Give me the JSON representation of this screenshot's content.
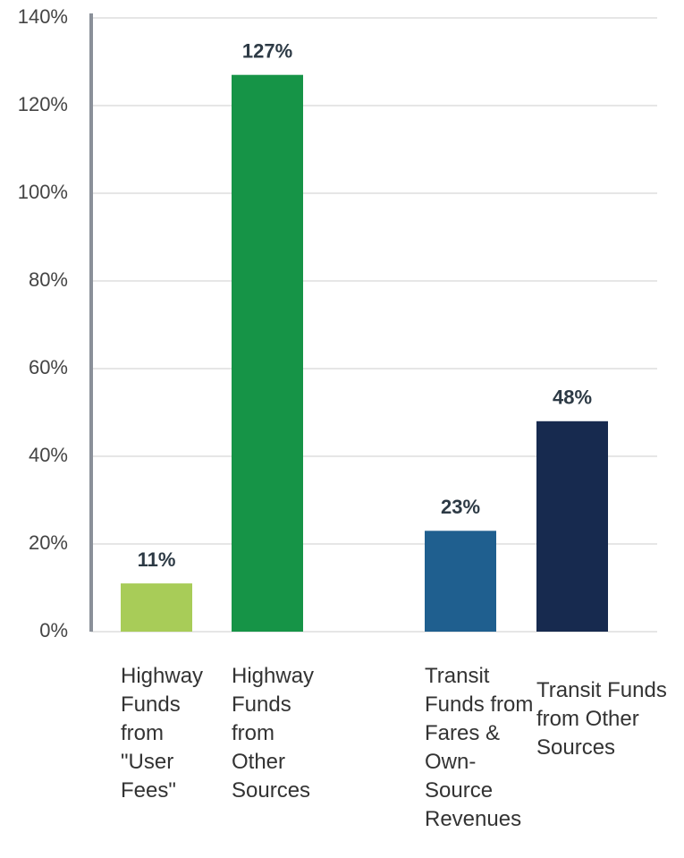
{
  "chart_data": {
    "type": "bar",
    "categories": [
      "Highway Funds from \"User Fees\"",
      "Highway Funds from Other Sources",
      "Transit Funds from Fares & Own-Source Revenues",
      "Transit Funds from Other Sources"
    ],
    "values": [
      11,
      127,
      23,
      48
    ],
    "value_labels": [
      "11%",
      "127%",
      "23%",
      "48%"
    ],
    "colors": [
      "#a8cc58",
      "#169447",
      "#1f5f8f",
      "#172a4f"
    ],
    "ylim": [
      0,
      140
    ],
    "yticks": [
      {
        "value": 0,
        "label": "0%"
      },
      {
        "value": 20,
        "label": "20%"
      },
      {
        "value": 40,
        "label": "40%"
      },
      {
        "value": 60,
        "label": "60%"
      },
      {
        "value": 80,
        "label": "80%"
      },
      {
        "value": 100,
        "label": "100%"
      },
      {
        "value": 120,
        "label": "120%"
      },
      {
        "value": 140,
        "label": "140%"
      }
    ],
    "grid": true
  }
}
